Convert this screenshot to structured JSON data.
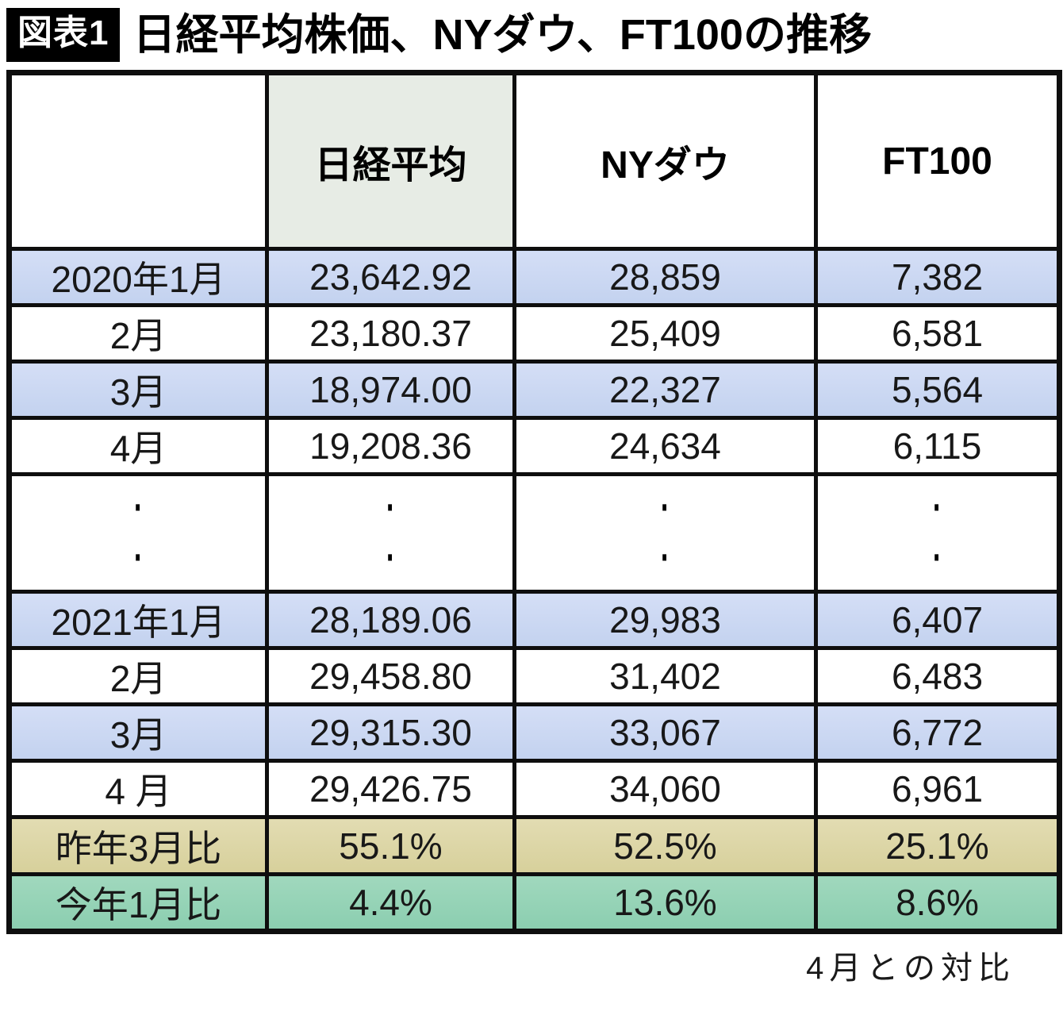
{
  "title": {
    "badge": "図表1",
    "text": "日経平均株価、NYダウ、FT100の推移"
  },
  "table": {
    "columns": {
      "month": "",
      "nikkei": "日経平均",
      "nydow": "NYダウ",
      "ft100": "FT100"
    },
    "ellipsis": "·",
    "rows": [
      {
        "label": "2020年1月",
        "nikkei": "23,642.92",
        "nydow": "28,859",
        "ft100": "7,382"
      },
      {
        "label": "2月",
        "nikkei": "23,180.37",
        "nydow": "25,409",
        "ft100": "6,581"
      },
      {
        "label": "3月",
        "nikkei": "18,974.00",
        "nydow": "22,327",
        "ft100": "5,564"
      },
      {
        "label": "4月",
        "nikkei": "19,208.36",
        "nydow": "24,634",
        "ft100": "6,115"
      },
      {
        "label": "2021年1月",
        "nikkei": "28,189.06",
        "nydow": "29,983",
        "ft100": "6,407"
      },
      {
        "label": "2月",
        "nikkei": "29,458.80",
        "nydow": "31,402",
        "ft100": "6,483"
      },
      {
        "label": "3月",
        "nikkei": "29,315.30",
        "nydow": "33,067",
        "ft100": "6,772"
      },
      {
        "label": "4 月",
        "nikkei": "29,426.75",
        "nydow": "34,060",
        "ft100": "6,961"
      },
      {
        "label": "昨年3月比",
        "nikkei": "55.1%",
        "nydow": "52.5%",
        "ft100": "25.1%"
      },
      {
        "label": "今年1月比",
        "nikkei": "4.4%",
        "nydow": "13.6%",
        "ft100": "8.6%"
      }
    ]
  },
  "footer": {
    "note": "4月との対比"
  },
  "colors": {
    "badge_bg": "#000000",
    "badge_text": "#ffffff",
    "border": "#0e0e0e",
    "highlight_row_blue": "#c9d6f2",
    "header_nikkei_green": "#e7ece5",
    "compare_march_tan": "#dcd5a5",
    "compare_january_green": "#94d2b6"
  },
  "chart_data": {
    "type": "table",
    "title": "図表1 日経平均株価、NYダウ、FT100の推移",
    "columns": [
      "",
      "日経平均",
      "NYダウ",
      "FT100"
    ],
    "rows": [
      [
        "2020年1月",
        23642.92,
        28859,
        7382
      ],
      [
        "2020年2月",
        23180.37,
        25409,
        6581
      ],
      [
        "2020年3月",
        18974.0,
        22327,
        5564
      ],
      [
        "2020年4月",
        19208.36,
        24634,
        6115
      ],
      [
        "2021年1月",
        28189.06,
        29983,
        6407
      ],
      [
        "2021年2月",
        29458.8,
        31402,
        6483
      ],
      [
        "2021年3月",
        29315.3,
        33067,
        6772
      ],
      [
        "2021年4月",
        29426.75,
        34060,
        6961
      ],
      [
        "昨年3月比",
        "55.1%",
        "52.5%",
        "25.1%"
      ],
      [
        "今年1月比",
        "4.4%",
        "13.6%",
        "8.6%"
      ]
    ],
    "ellipsis_rows_between": [
      "2020年4月",
      "2021年1月"
    ],
    "note": "4月との対比"
  }
}
